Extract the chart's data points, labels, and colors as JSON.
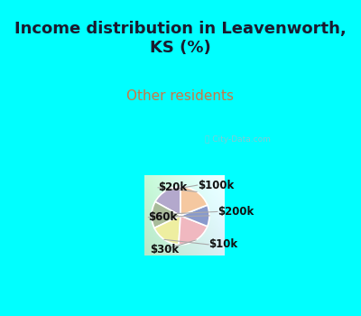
{
  "title": "Income distribution in Leavenworth,\nKS (%)",
  "subtitle": "Other residents",
  "title_color": "#1a1a2e",
  "subtitle_color": "#cc7744",
  "background_cyan": "#00ffff",
  "labels": [
    "$100k",
    "$200k",
    "$10k",
    "$30k",
    "$60k",
    "$20k"
  ],
  "sizes": [
    17,
    15,
    17,
    20,
    12,
    19
  ],
  "colors": [
    "#b3a8cc",
    "#a8bb99",
    "#eeeea0",
    "#f0b8c0",
    "#8899cc",
    "#f5c8a0"
  ],
  "start_angle": 90,
  "chart_bg_left": "#b8e8c8",
  "chart_bg_right": "#d8eef8",
  "label_fontsize": 8.5,
  "title_fontsize": 13,
  "subtitle_fontsize": 11
}
